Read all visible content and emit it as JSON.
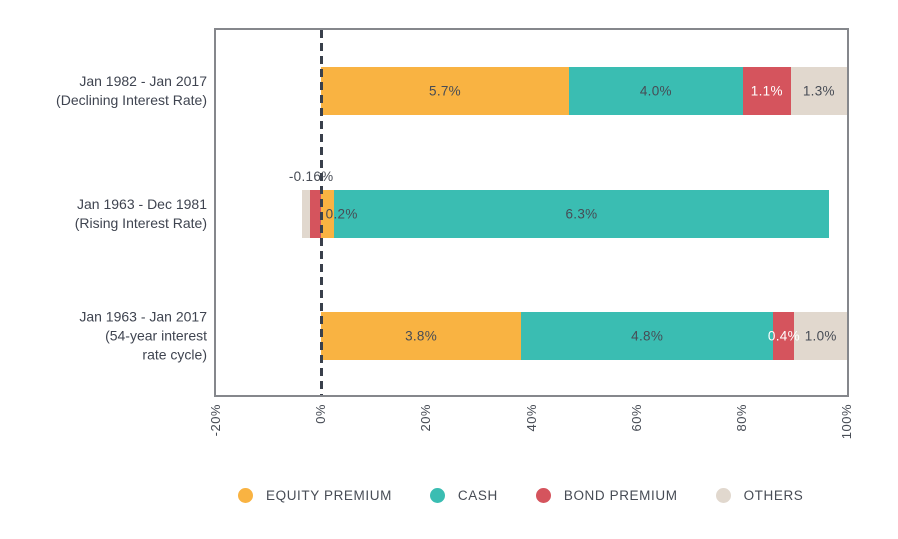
{
  "chart_data": {
    "type": "bar",
    "variant": "horizontal-stacked",
    "title": "",
    "xlabel": "",
    "ylabel": "",
    "grid": false,
    "legend_position": "bottom",
    "axis": {
      "min": -20,
      "max": 100,
      "zero_line": 0,
      "ticks": [
        {
          "value": -20,
          "label": "-20%"
        },
        {
          "value": 0,
          "label": "0%"
        },
        {
          "value": 20,
          "label": "20%"
        },
        {
          "value": 40,
          "label": "40%"
        },
        {
          "value": 60,
          "label": "60%"
        },
        {
          "value": 80,
          "label": "80%"
        },
        {
          "value": 100,
          "label": "100%"
        }
      ]
    },
    "colors": {
      "equity_premium": "#f9b342",
      "cash": "#3abdb2",
      "bond_premium": "#d5545d",
      "others": "#e1d8ce",
      "text_dark": "#474c55",
      "text_light": "#ffffff",
      "category_text": "#3f4450",
      "axis_border": "#85878c",
      "zero_line": "#39404c"
    },
    "legend": [
      {
        "series": "equity_premium",
        "label": "EQUITY PREMIUM"
      },
      {
        "series": "cash",
        "label": "CASH"
      },
      {
        "series": "bond_premium",
        "label": "BOND PREMIUM"
      },
      {
        "series": "others",
        "label": "OTHERS"
      }
    ],
    "bars": [
      {
        "category_lines": [
          "Jan 1982 - Jan 2017",
          "(Declining Interest Rate)"
        ],
        "segments": [
          {
            "series": "equity_premium",
            "value": 5.7,
            "label": "5.7%",
            "start": 0,
            "end": 47.1,
            "label_style": "dark"
          },
          {
            "series": "cash",
            "value": 4.0,
            "label": "4.0%",
            "start": 47.1,
            "end": 80.2,
            "label_style": "dark"
          },
          {
            "series": "bond_premium",
            "value": 1.1,
            "label": "1.1%",
            "start": 80.2,
            "end": 89.3,
            "label_style": "light"
          },
          {
            "series": "others",
            "value": 1.3,
            "label": "1.3%",
            "start": 89.3,
            "end": 100,
            "label_style": "dark"
          }
        ]
      },
      {
        "category_lines": [
          "Jan 1963 - Dec 1981",
          "(Rising Interest Rate)"
        ],
        "annotation": {
          "text": "-0.16%",
          "axis_x": -1.9
        },
        "segments": [
          {
            "series": "others",
            "label": "",
            "start": -3.6,
            "end": -2.2
          },
          {
            "series": "bond_premium",
            "value": -0.16,
            "label": "",
            "start": -2.2,
            "end": 0
          },
          {
            "series": "equity_premium",
            "value": 0.2,
            "label": "0.2%",
            "start": 0,
            "end": 2.4,
            "label_style": "dark",
            "label_axis_x": 3.9
          },
          {
            "series": "cash",
            "value": 6.3,
            "label": "6.3%",
            "start": 2.4,
            "end": 96.6,
            "label_style": "dark"
          }
        ]
      },
      {
        "category_lines": [
          "Jan 1963 - Jan 2017",
          "(54-year interest",
          "rate cycle)"
        ],
        "segments": [
          {
            "series": "equity_premium",
            "value": 3.8,
            "label": "3.8%",
            "start": 0,
            "end": 38,
            "label_style": "dark"
          },
          {
            "series": "cash",
            "value": 4.8,
            "label": "4.8%",
            "start": 38,
            "end": 86,
            "label_style": "dark"
          },
          {
            "series": "bond_premium",
            "value": 0.4,
            "label": "0.4%",
            "start": 86,
            "end": 90,
            "label_style": "light"
          },
          {
            "series": "others",
            "value": 1.0,
            "label": "1.0%",
            "start": 90,
            "end": 100,
            "label_style": "dark"
          }
        ]
      }
    ]
  }
}
